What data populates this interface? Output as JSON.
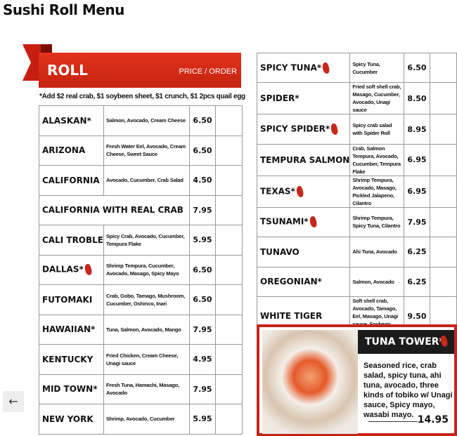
{
  "page_title": "Sushi Roll Menu",
  "banner": {
    "title": "ROLL",
    "price_label": "PRICE / ORDER"
  },
  "note": "*Add $2 real crab, $1 soybeen sheet, $1 crunch, $1 2pcs quail egg",
  "left_items": [
    {
      "name": "ALASKAN*",
      "desc": "Salmon, Avocado, Cream Cheese",
      "price": "6.50",
      "spicy": false
    },
    {
      "name": "ARIZONA",
      "desc": "Fresh Water Eel, Avocado, Cream Cheese, Sweet Sauce",
      "price": "6.50",
      "spicy": false
    },
    {
      "name": "CALIFORNIA",
      "desc": "Avocado, Cucumber, Crab Salad",
      "price": "4.50",
      "spicy": false
    },
    {
      "name": "CALIFORNIA WITH REAL CRAB",
      "desc": "",
      "price": "7.95",
      "spicy": false
    },
    {
      "name": "CALI TROBLE",
      "desc": "Spicy Crab, Avocado, Cucumber, Tempura Flake",
      "price": "5.95",
      "spicy": false
    },
    {
      "name": "DALLAS*",
      "desc": "Shrimp Tempura, Cucumber, Avocado, Masago, Spicy Mayo",
      "price": "6.50",
      "spicy": true
    },
    {
      "name": "FUTOMAKI",
      "desc": "Crab, Gobo, Tamago, Mushroom, Cucumber, Oshinco, Inari",
      "price": "6.50",
      "spicy": false
    },
    {
      "name": "HAWAIIAN*",
      "desc": "Tuna, Salmon, Avocado, Mango",
      "price": "7.95",
      "spicy": false
    },
    {
      "name": "KENTUCKY",
      "desc": "Fried Chicken, Cream Cheese, Unagi sauce",
      "price": "4.95",
      "spicy": false
    },
    {
      "name": "MID TOWN*",
      "desc": "Fresh Tuna, Hamachi, Masago, Avocado",
      "price": "7.95",
      "spicy": false
    },
    {
      "name": "NEW YORK",
      "desc": "Shrimp, Avocado, Cucumber",
      "price": "5.95",
      "spicy": false
    }
  ],
  "right_items": [
    {
      "name": "SPICY TUNA*",
      "desc": "Spicy Tuna, Cucumber",
      "price": "6.50",
      "spicy": true
    },
    {
      "name": "SPIDER*",
      "desc": "Fried soft shell crab, Masago, Cucumber, Avocado, Unagi sauce",
      "price": "8.50",
      "spicy": false
    },
    {
      "name": "SPICY SPIDER*",
      "desc": "Spicy crab salad with Spider Roll",
      "price": "8.95",
      "spicy": true
    },
    {
      "name": "TEMPURA SALMON",
      "desc": "Crab, Salmon Tempura, Avocado, Cucumber, Tempura Flake",
      "price": "6.95",
      "spicy": false
    },
    {
      "name": "TEXAS*",
      "desc": "Shrimp Tempura, Avocado, Masago, Pickled Jalapeno, Cilantro",
      "price": "6.95",
      "spicy": true
    },
    {
      "name": "TSUNAMI*",
      "desc": "Shrimp Tempura, Spicy Tuna, Cilantro",
      "price": "7.95",
      "spicy": true
    },
    {
      "name": "TUNAVO",
      "desc": "Ahi Tuna, Avocado",
      "price": "6.25",
      "spicy": false
    },
    {
      "name": "OREGONIAN*",
      "desc": "Salmon, Avocado",
      "price": "6.25",
      "spicy": false
    },
    {
      "name": "WHITE TIGER",
      "desc": "Soft shell crab, Avocado, Tamago, Eel, Masago, Unagi sauce, Soybean sheet",
      "price": "9.50",
      "spicy": false
    }
  ],
  "feature": {
    "name": "TUNA TOWER*",
    "desc": "Seasoned rice, crab salad, spicy tuna, ahi tuna, avocado, three kinds of tobiko w/ Unagi sauce, Spicy mayo, wasabi mayo.",
    "price": "14.95"
  },
  "nav": {
    "back_icon": "←"
  },
  "colors": {
    "accent": "#c8261a",
    "dark": "#1b1b1b"
  }
}
